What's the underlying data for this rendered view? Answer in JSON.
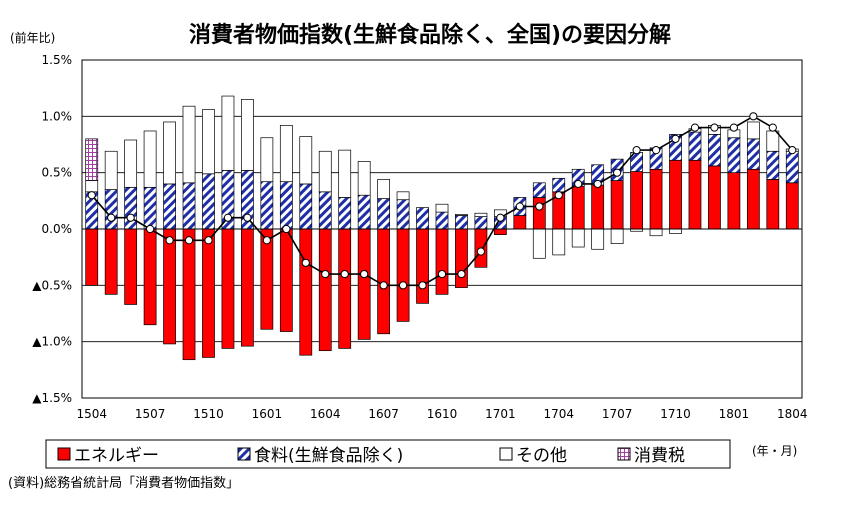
{
  "chart_data": {
    "type": "bar",
    "title": "消費者物価指数(生鮮食品除く、全国)の要因分解",
    "ylabel": "(前年比)",
    "xlabel": "(年・月)",
    "source": "(資料)総務省統計局「消費者物価指数」",
    "ylim": [
      -1.5,
      1.5
    ],
    "yticks": [
      1.5,
      1.0,
      0.5,
      0.0,
      -0.5,
      -1.0,
      -1.5
    ],
    "ytick_labels": [
      "1.5%",
      "1.0%",
      "0.5%",
      "0.0%",
      "▲0.5%",
      "▲1.0%",
      "▲1.5%"
    ],
    "xtick_labels": [
      "1504",
      "1507",
      "1510",
      "1601",
      "1604",
      "1607",
      "1610",
      "1701",
      "1704",
      "1707",
      "1710",
      "1801",
      "1804"
    ],
    "categories": [
      "1504",
      "1505",
      "1506",
      "1507",
      "1508",
      "1509",
      "1510",
      "1511",
      "1512",
      "1601",
      "1602",
      "1603",
      "1604",
      "1605",
      "1606",
      "1607",
      "1608",
      "1609",
      "1610",
      "1611",
      "1612",
      "1701",
      "1702",
      "1703",
      "1704",
      "1705",
      "1706",
      "1707",
      "1708",
      "1709",
      "1710",
      "1711",
      "1712",
      "1801",
      "1802",
      "1803",
      "1804"
    ],
    "grid": true,
    "legend_position": "bottom",
    "series": [
      {
        "name": "エネルギー",
        "kind": "bar",
        "color": "#ff0000",
        "values": [
          -0.5,
          -0.58,
          -0.67,
          -0.85,
          -1.02,
          -1.16,
          -1.14,
          -1.06,
          -1.04,
          -0.89,
          -0.91,
          -1.12,
          -1.08,
          -1.06,
          -0.98,
          -0.93,
          -0.82,
          -0.66,
          -0.58,
          -0.52,
          -0.34,
          -0.05,
          0.12,
          0.28,
          0.33,
          0.38,
          0.39,
          0.43,
          0.51,
          0.53,
          0.61,
          0.61,
          0.56,
          0.5,
          0.53,
          0.44,
          0.41
        ]
      },
      {
        "name": "食料(生鮮食品除く)",
        "kind": "bar",
        "color": "#1f2fa8",
        "values": [
          0.33,
          0.35,
          0.37,
          0.37,
          0.4,
          0.41,
          0.49,
          0.52,
          0.52,
          0.42,
          0.42,
          0.4,
          0.33,
          0.28,
          0.3,
          0.27,
          0.26,
          0.19,
          0.15,
          0.12,
          0.11,
          0.11,
          0.16,
          0.13,
          0.12,
          0.15,
          0.18,
          0.19,
          0.17,
          0.19,
          0.23,
          0.25,
          0.28,
          0.31,
          0.27,
          0.25,
          0.28
        ]
      },
      {
        "name": "その他",
        "kind": "bar",
        "color": "#ffffff",
        "values": [
          0.1,
          0.34,
          0.42,
          0.5,
          0.55,
          0.68,
          0.57,
          0.66,
          0.63,
          0.39,
          0.5,
          0.42,
          0.36,
          0.42,
          0.3,
          0.17,
          0.07,
          0.0,
          0.07,
          0.01,
          0.03,
          0.06,
          0.0,
          -0.26,
          -0.23,
          -0.16,
          -0.18,
          -0.13,
          -0.02,
          -0.06,
          -0.04,
          0.03,
          0.08,
          0.07,
          0.15,
          0.18,
          0.02
        ]
      },
      {
        "name": "消費税",
        "kind": "bar",
        "color": "#c080c0",
        "values": [
          0.37,
          0,
          0,
          0,
          0,
          0,
          0,
          0,
          0,
          0,
          0,
          0,
          0,
          0,
          0,
          0,
          0,
          0,
          0,
          0,
          0,
          0,
          0,
          0,
          0,
          0,
          0,
          0,
          0,
          0,
          0,
          0,
          0,
          0,
          0,
          0,
          0
        ]
      },
      {
        "name": "",
        "kind": "line",
        "color": "#000000",
        "values": [
          0.3,
          0.1,
          0.1,
          0.0,
          -0.1,
          -0.1,
          -0.1,
          0.1,
          0.1,
          -0.1,
          0.0,
          -0.3,
          -0.4,
          -0.4,
          -0.4,
          -0.5,
          -0.5,
          -0.5,
          -0.4,
          -0.4,
          -0.2,
          0.1,
          0.2,
          0.2,
          0.3,
          0.4,
          0.4,
          0.5,
          0.7,
          0.7,
          0.8,
          0.9,
          0.9,
          0.9,
          1.0,
          0.9,
          0.7
        ]
      }
    ]
  }
}
